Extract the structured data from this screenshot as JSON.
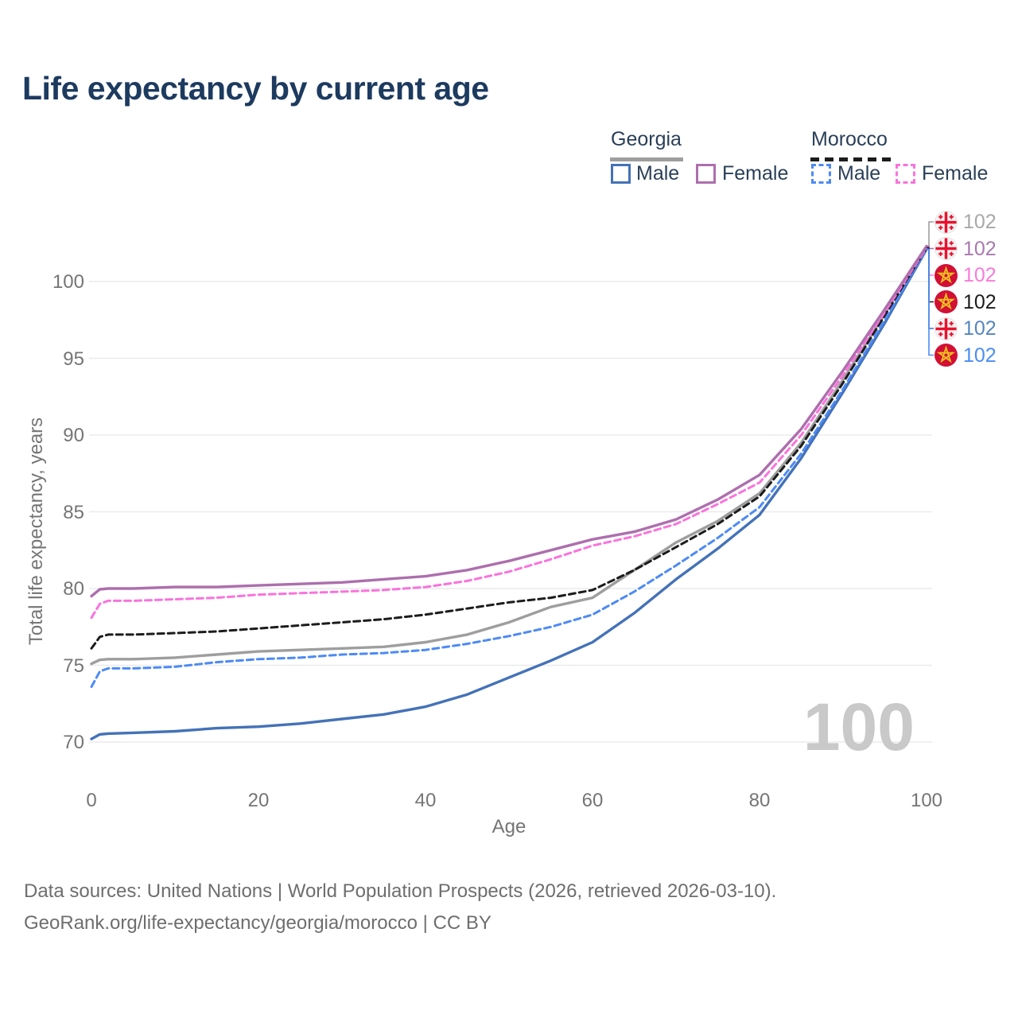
{
  "title": "Life expectancy by current age",
  "colors": {
    "title_text": "#1d3a5f",
    "axis_text": "#757575",
    "legend_text": "#2a3f58",
    "footer_text": "#6e6e6e",
    "grid": "#ebebeb",
    "watermark": "#c9c9c9",
    "georgia_flag_red": "#e8112d",
    "morocco_flag_red": "#d21034",
    "morocco_star_gold": "#f0c420"
  },
  "legend": {
    "groups": [
      {
        "label": "Georgia",
        "line_color": "#9e9e9e",
        "line_style": "solid",
        "items": [
          {
            "label": "Male",
            "color": "#4472b8",
            "dashed": false
          },
          {
            "label": "Female",
            "color": "#ad6fad",
            "dashed": false
          }
        ]
      },
      {
        "label": "Morocco",
        "line_color": "#1c1c1c",
        "line_style": "dashed",
        "items": [
          {
            "label": "Male",
            "color": "#4d8af5",
            "dashed": true
          },
          {
            "label": "Female",
            "color": "#fa73dc",
            "dashed": true
          }
        ]
      }
    ]
  },
  "chart_data": {
    "type": "line",
    "title": "Life expectancy by current age",
    "xlabel": "Age",
    "ylabel": "Total life expectancy, years",
    "xlim": [
      0,
      100
    ],
    "ylim": [
      68,
      103.5
    ],
    "x_ticks": [
      0,
      20,
      40,
      60,
      80,
      100
    ],
    "y_ticks": [
      70,
      75,
      80,
      85,
      90,
      95,
      100
    ],
    "grid": "horizontal-only",
    "legend_position": "top-right",
    "x": [
      0,
      1,
      2,
      5,
      10,
      15,
      20,
      25,
      30,
      35,
      40,
      45,
      50,
      55,
      60,
      65,
      70,
      75,
      80,
      85,
      90,
      95,
      100
    ],
    "series": [
      {
        "name": "Georgia",
        "country": "georgia",
        "sex": "both",
        "color": "#9e9e9e",
        "dashed": false,
        "values": [
          75.1,
          75.35,
          75.4,
          75.4,
          75.5,
          75.7,
          75.9,
          76.0,
          76.1,
          76.2,
          76.5,
          77.0,
          77.8,
          78.8,
          79.4,
          81.2,
          83.0,
          84.4,
          86.2,
          89.5,
          93.6,
          97.9,
          102.3
        ]
      },
      {
        "name": "Georgia Male",
        "country": "georgia",
        "sex": "male",
        "color": "#4472b8",
        "dashed": false,
        "values": [
          70.2,
          70.5,
          70.55,
          70.6,
          70.7,
          70.9,
          71.0,
          71.2,
          71.5,
          71.8,
          72.3,
          73.1,
          74.2,
          75.3,
          76.5,
          78.4,
          80.6,
          82.6,
          84.8,
          88.5,
          92.8,
          97.3,
          102.1
        ]
      },
      {
        "name": "Georgia Female",
        "country": "georgia",
        "sex": "female",
        "color": "#ad6fad",
        "dashed": false,
        "values": [
          79.5,
          79.95,
          80.0,
          80.0,
          80.1,
          80.1,
          80.2,
          80.3,
          80.4,
          80.6,
          80.8,
          81.2,
          81.8,
          82.5,
          83.2,
          83.7,
          84.5,
          85.8,
          87.4,
          90.4,
          94.2,
          98.2,
          102.3
        ]
      },
      {
        "name": "Morocco",
        "country": "morocco",
        "sex": "both",
        "color": "#1c1c1c",
        "dashed": true,
        "values": [
          76.1,
          76.85,
          77.0,
          77.0,
          77.1,
          77.2,
          77.4,
          77.6,
          77.8,
          78.0,
          78.3,
          78.7,
          79.1,
          79.4,
          79.9,
          81.2,
          82.7,
          84.2,
          86.0,
          89.3,
          93.4,
          97.8,
          102.2
        ]
      },
      {
        "name": "Morocco Male",
        "country": "morocco",
        "sex": "male",
        "color": "#4d8af5",
        "dashed": true,
        "values": [
          73.6,
          74.6,
          74.8,
          74.8,
          74.9,
          75.2,
          75.4,
          75.5,
          75.7,
          75.8,
          76.0,
          76.4,
          76.9,
          77.5,
          78.3,
          79.8,
          81.5,
          83.3,
          85.3,
          88.8,
          93.0,
          97.5,
          102.1
        ]
      },
      {
        "name": "Morocco Female",
        "country": "morocco",
        "sex": "female",
        "color": "#fa73dc",
        "dashed": true,
        "values": [
          78.1,
          79.0,
          79.2,
          79.2,
          79.3,
          79.4,
          79.6,
          79.7,
          79.8,
          79.9,
          80.1,
          80.5,
          81.1,
          81.9,
          82.8,
          83.4,
          84.2,
          85.5,
          86.9,
          90.0,
          93.9,
          98.0,
          102.2
        ]
      }
    ]
  },
  "end_labels": [
    {
      "value": "102",
      "flag": "georgia",
      "series_index": 0,
      "color": "#a8a8a8"
    },
    {
      "value": "102",
      "flag": "georgia",
      "series_index": 2,
      "color": "#a779ae"
    },
    {
      "value": "102",
      "flag": "morocco",
      "series_index": 5,
      "color": "#fa7ad9"
    },
    {
      "value": "102",
      "flag": "morocco",
      "series_index": 3,
      "color": "#1c1c1c"
    },
    {
      "value": "102",
      "flag": "georgia",
      "series_index": 1,
      "color": "#5585c0"
    },
    {
      "value": "102",
      "flag": "morocco",
      "series_index": 4,
      "color": "#4a8cf7"
    }
  ],
  "watermark": "100",
  "footer": {
    "line1": "Data sources: United Nations | World Population Prospects (2026, retrieved 2026-03-10).",
    "line2": "GeoRank.org/life-expectancy/georgia/morocco | CC BY"
  }
}
